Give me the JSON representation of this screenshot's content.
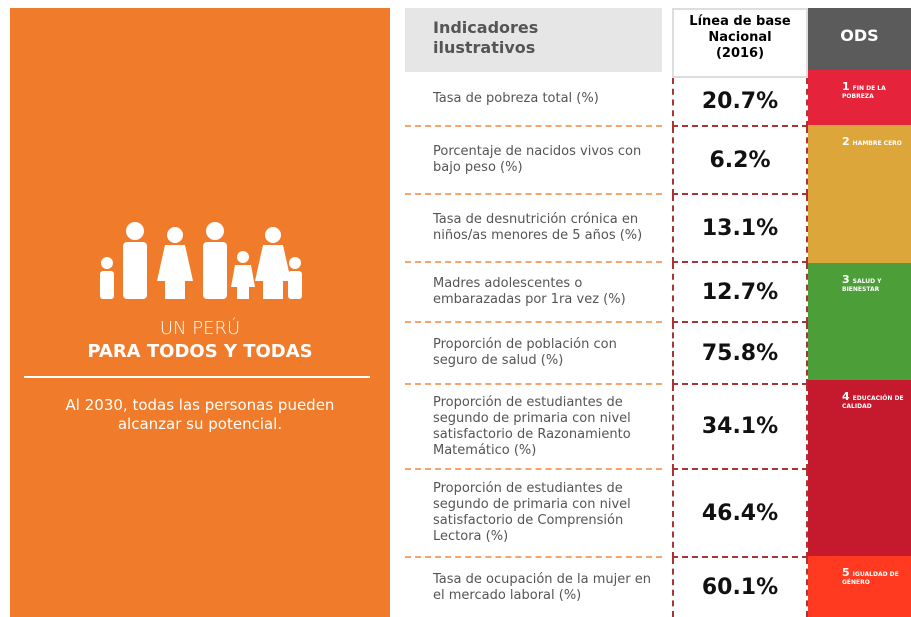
{
  "panel": {
    "title_light": "UN PERÚ",
    "title_bold": "PARA TODOS Y TODAS",
    "tagline": "Al 2030, todas las personas pueden alcanzar su potencial."
  },
  "table": {
    "headers": [
      "Indicadores ilustrativos",
      "Línea de base Nacional (2016)",
      "ODS"
    ],
    "rows": [
      {
        "indicator": "Tasa de pobreza total (%)",
        "baseline": "20.7%"
      },
      {
        "indicator": "Porcentaje de nacidos vivos con bajo peso (%)",
        "baseline": "6.2%"
      },
      {
        "indicator": "Tasa de desnutrición crónica en niños/as menores de 5 años (%)",
        "baseline": "13.1%"
      },
      {
        "indicator": "Madres adolescentes o embarazadas por 1ra vez (%)",
        "baseline": "12.7%"
      },
      {
        "indicator": "Proporción de población con seguro de salud (%)",
        "baseline": "75.8%"
      },
      {
        "indicator": "Proporción de estudiantes de segundo de primaria con nivel satisfactorio de Razonamiento Matemático (%)",
        "baseline": "34.1%"
      },
      {
        "indicator": "Proporción de estudiantes de segundo de primaria con nivel satisfactorio de Comprensión Lectora (%)",
        "baseline": "46.4%"
      },
      {
        "indicator": "Tasa de ocupación de la mujer en el mercado laboral (%)",
        "baseline": "60.1%"
      }
    ]
  },
  "ods": [
    {
      "number": "1",
      "label": "FIN DE LA POBREZA"
    },
    {
      "number": "2",
      "label": "HAMBRE CERO"
    },
    {
      "number": "3",
      "label": "SALUD Y BIENESTAR"
    },
    {
      "number": "4",
      "label": "EDUCACIÓN DE CALIDAD"
    },
    {
      "number": "5",
      "label": "IGUALDAD DE GÉNERO"
    }
  ]
}
